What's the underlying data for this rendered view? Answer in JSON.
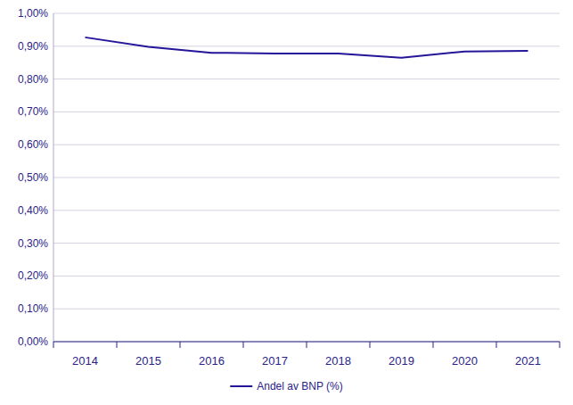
{
  "chart_data": {
    "type": "line",
    "categories": [
      "2014",
      "2015",
      "2016",
      "2017",
      "2018",
      "2019",
      "2020",
      "2021"
    ],
    "series": [
      {
        "name": "Andel av BNP (%)",
        "color": "#25159a",
        "values": [
          0.927,
          0.898,
          0.88,
          0.878,
          0.878,
          0.865,
          0.884,
          0.886
        ]
      }
    ],
    "ylim": [
      0,
      1
    ],
    "yticks": [
      {
        "value": 0,
        "label": "0,00%"
      },
      {
        "value": 0.1,
        "label": "0,10%"
      },
      {
        "value": 0.2,
        "label": "0,20%"
      },
      {
        "value": 0.3,
        "label": "0,30%"
      },
      {
        "value": 0.4,
        "label": "0,40%"
      },
      {
        "value": 0.5,
        "label": "0,50%"
      },
      {
        "value": 0.6,
        "label": "0,60%"
      },
      {
        "value": 0.7,
        "label": "0,70%"
      },
      {
        "value": 0.8,
        "label": "0,80%"
      },
      {
        "value": 0.9,
        "label": "0,90%"
      },
      {
        "value": 1,
        "label": "1,00%"
      }
    ],
    "grid": true,
    "legend": "bottom"
  }
}
